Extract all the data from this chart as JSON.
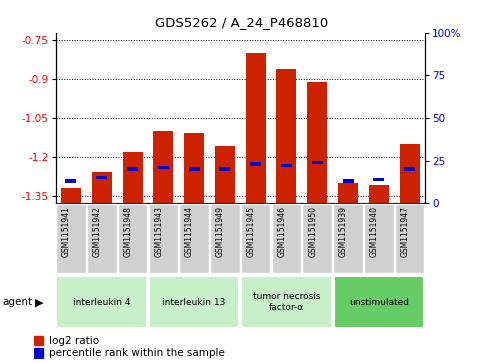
{
  "title": "GDS5262 / A_24_P468810",
  "samples": [
    "GSM1151941",
    "GSM1151942",
    "GSM1151948",
    "GSM1151943",
    "GSM1151944",
    "GSM1151949",
    "GSM1151945",
    "GSM1151946",
    "GSM1151950",
    "GSM1151939",
    "GSM1151940",
    "GSM1151947"
  ],
  "log2_ratio": [
    -1.32,
    -1.26,
    -1.18,
    -1.1,
    -1.11,
    -1.16,
    -0.8,
    -0.86,
    -0.91,
    -1.3,
    -1.31,
    -1.15
  ],
  "percentile_rank": [
    13,
    15,
    20,
    21,
    20,
    20,
    23,
    22,
    24,
    13,
    14,
    20
  ],
  "groups": [
    {
      "label": "interleukin 4",
      "indices": [
        0,
        1,
        2
      ],
      "color": "#c8f0c8"
    },
    {
      "label": "interleukin 13",
      "indices": [
        3,
        4,
        5
      ],
      "color": "#c8f0c8"
    },
    {
      "label": "tumor necrosis\nfactor-α",
      "indices": [
        6,
        7,
        8
      ],
      "color": "#c8f0c8"
    },
    {
      "label": "unstimulated",
      "indices": [
        9,
        10,
        11
      ],
      "color": "#66cc66"
    }
  ],
  "ylim_left": [
    -1.38,
    -0.72
  ],
  "ylim_right": [
    0,
    100
  ],
  "yticks_left": [
    -1.35,
    -1.2,
    -1.05,
    -0.9,
    -0.75
  ],
  "yticks_right": [
    0,
    25,
    50,
    75,
    100
  ],
  "bar_color": "#cc2200",
  "percentile_color": "#0000cc",
  "sample_bg_color": "#d0d0d0",
  "plot_bg": "#ffffff",
  "legend_log2": "log2 ratio",
  "legend_pct": "percentile rank within the sample"
}
